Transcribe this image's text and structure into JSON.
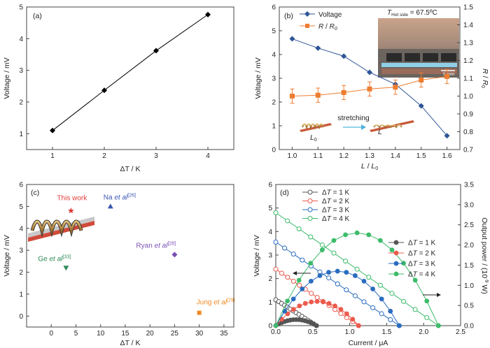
{
  "chart_data": [
    {
      "panel": "(a)",
      "type": "line",
      "xlabel": "ΔT / K",
      "ylabel": "Voltage / mV",
      "xlim": [
        0.5,
        4.5
      ],
      "ylim": [
        0.5,
        5
      ],
      "xticks": [
        1,
        2,
        3,
        4
      ],
      "yticks": [
        1,
        2,
        3,
        4,
        5
      ],
      "x": [
        1,
        2,
        3,
        4
      ],
      "y": [
        1.1,
        2.37,
        3.62,
        4.76
      ],
      "marker": "diamond",
      "color": "#000000"
    },
    {
      "panel": "(b)",
      "type": "line",
      "xlabel": "L / L0",
      "ylabel": "Voltage / mV",
      "ylabel_right": "R / R0",
      "xlim": [
        0.95,
        1.65
      ],
      "ylim": [
        0,
        6
      ],
      "ylim_right": [
        0.7,
        1.5
      ],
      "xticks": [
        1.0,
        1.1,
        1.2,
        1.3,
        1.4,
        1.5,
        1.6
      ],
      "yticks": [
        0,
        1,
        2,
        3,
        4,
        5,
        6
      ],
      "yticks_right": [
        0.7,
        0.8,
        0.9,
        1.0,
        1.1,
        1.2,
        1.3,
        1.4,
        1.5
      ],
      "x": [
        1.0,
        1.1,
        1.2,
        1.3,
        1.4,
        1.5,
        1.6
      ],
      "series": [
        {
          "name": "Voltage",
          "axis": "left",
          "color": "#2f5597",
          "marker": "diamond",
          "values": [
            4.66,
            4.27,
            3.93,
            3.25,
            2.75,
            1.84,
            0.58
          ]
        },
        {
          "name": "R / R0",
          "axis": "right",
          "color": "#ed7d31",
          "marker": "square",
          "values": [
            1.0,
            1.005,
            1.02,
            1.04,
            1.05,
            1.09,
            1.11
          ],
          "errors": [
            0.04,
            0.04,
            0.04,
            0.04,
            0.04,
            0.04,
            0.04
          ]
        }
      ],
      "annotation": "T Hot side = 67.5ºC",
      "inset_text": "stretching",
      "inset_labels": [
        "L0",
        "L"
      ],
      "photo_scale": "5 mm"
    },
    {
      "panel": "(c)",
      "type": "scatter",
      "xlabel": "ΔT / K",
      "ylabel": "Voltage / mV",
      "xlim": [
        -5,
        37
      ],
      "ylim": [
        -0.5,
        6
      ],
      "xticks": [
        0,
        5,
        10,
        15,
        20,
        25,
        30,
        35
      ],
      "yticks": [
        0,
        1,
        2,
        3,
        4,
        5,
        6
      ],
      "points": [
        {
          "label": "This work",
          "x": 4,
          "y": 4.8,
          "color": "#e03a3a",
          "marker": "star"
        },
        {
          "label": "Na et al[26]",
          "x": 12,
          "y": 5.0,
          "color": "#3a56b0",
          "marker": "triangle"
        },
        {
          "label": "Ryan et al[28]",
          "x": 25,
          "y": 2.8,
          "color": "#7a4fb5",
          "marker": "diamond"
        },
        {
          "label": "Ge et al[33]",
          "x": 3,
          "y": 2.2,
          "color": "#2e8b57",
          "marker": "triangle-down"
        },
        {
          "label": "Jung et al[29]",
          "x": 30,
          "y": 0.15,
          "color": "#f08a24",
          "marker": "square"
        }
      ]
    },
    {
      "panel": "(d)",
      "type": "line",
      "xlabel": "Current / μA",
      "ylabel": "Voltage / mV",
      "ylabel_right": "Output power / (10⁻⁹ W)",
      "xlim": [
        0,
        2.5
      ],
      "ylim": [
        0,
        6
      ],
      "ylim_right": [
        0,
        3.5
      ],
      "xticks": [
        0.0,
        0.5,
        1.0,
        1.5,
        2.0,
        2.5
      ],
      "yticks": [
        0,
        1,
        2,
        3,
        4,
        5,
        6
      ],
      "yticks_right": [
        0,
        0.5,
        1.0,
        1.5,
        2.0,
        2.5,
        3.0,
        3.5
      ],
      "series": [
        {
          "name": "ΔT = 1 K",
          "kind": "voltage",
          "axis": "left",
          "color": "#555555",
          "Isc": 0.55,
          "Voc": 1.1
        },
        {
          "name": "ΔT = 2 K",
          "kind": "voltage",
          "axis": "left",
          "color": "#ec5a4d",
          "Isc": 1.12,
          "Voc": 2.4
        },
        {
          "name": "ΔT = 3 K",
          "kind": "voltage",
          "axis": "left",
          "color": "#2a6cbf",
          "Isc": 1.67,
          "Voc": 3.55
        },
        {
          "name": "ΔT = 4 K",
          "kind": "voltage",
          "axis": "left",
          "color": "#3dbb6a",
          "Isc": 2.2,
          "Voc": 4.8
        },
        {
          "name": "ΔT = 1 K",
          "kind": "power",
          "axis": "right",
          "color": "#555555",
          "Isc": 0.55,
          "Pmax": 0.15
        },
        {
          "name": "ΔT = 2 K",
          "kind": "power",
          "axis": "right",
          "color": "#ec5a4d",
          "Isc": 1.12,
          "Pmax": 0.6
        },
        {
          "name": "ΔT = 3 K",
          "kind": "power",
          "axis": "right",
          "color": "#2a6cbf",
          "Isc": 1.67,
          "Pmax": 1.35
        },
        {
          "name": "ΔT = 4 K",
          "kind": "power",
          "axis": "right",
          "color": "#3dbb6a",
          "Isc": 2.2,
          "Pmax": 2.3
        }
      ]
    }
  ]
}
